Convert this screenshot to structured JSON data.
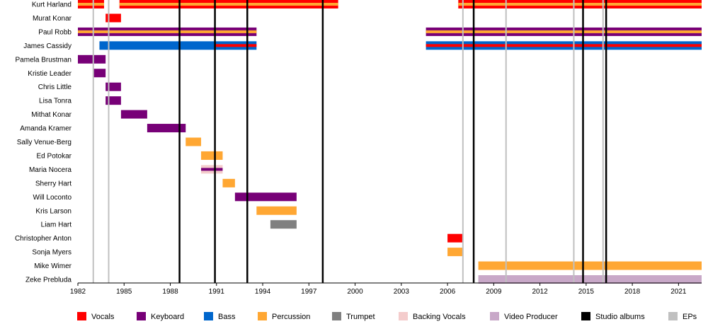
{
  "chart_data": {
    "type": "timeline",
    "xlim": [
      1982,
      2022.5
    ],
    "ticks": [
      "1982",
      "1985",
      "1988",
      "1991",
      "1994",
      "1997",
      "2000",
      "2003",
      "2006",
      "2009",
      "2012",
      "2015",
      "2018",
      "2021"
    ],
    "colors": {
      "Vocals": "#ff0000",
      "Keyboard": "#770077",
      "Bass": "#0066cc",
      "Percussion": "#ffa733",
      "Trumpet": "#808080",
      "Backing Vocals": "#f4cccc",
      "Video Producer": "#c8a8c8",
      "Studio albums": "#000000",
      "EPs": "#c0c0c0"
    },
    "legend": [
      "Vocals",
      "Keyboard",
      "Bass",
      "Percussion",
      "Trumpet",
      "Backing Vocals",
      "Video Producer",
      "Studio albums",
      "EPs"
    ],
    "studio_albums": [
      1988.6,
      1990.9,
      1993.0,
      1997.9,
      2007.7,
      2014.8,
      2016.3
    ],
    "eps": [
      1983.0,
      1984.0,
      2007.0,
      2009.8,
      2014.2,
      2016.1
    ],
    "members": [
      {
        "name": "Kurt Harland",
        "bars": [
          {
            "start": 1982,
            "end": 1983.7,
            "roles": [
              "Vocals",
              "Percussion"
            ]
          },
          {
            "start": 1984.7,
            "end": 1998.9,
            "roles": [
              "Vocals",
              "Percussion"
            ]
          },
          {
            "start": 2006.7,
            "end": 2022.5,
            "roles": [
              "Vocals",
              "Percussion"
            ]
          }
        ]
      },
      {
        "name": "Murat Konar",
        "bars": [
          {
            "start": 1983.8,
            "end": 1984.8,
            "roles": [
              "Vocals"
            ]
          }
        ]
      },
      {
        "name": "Paul Robb",
        "bars": [
          {
            "start": 1982,
            "end": 1993.6,
            "roles": [
              "Keyboard",
              "Percussion"
            ]
          },
          {
            "start": 2004.6,
            "end": 2022.5,
            "roles": [
              "Keyboard",
              "Percussion"
            ]
          }
        ]
      },
      {
        "name": "James Cassidy",
        "bars": [
          {
            "start": 1983.4,
            "end": 1990.9,
            "roles": [
              "Bass"
            ]
          },
          {
            "start": 1990.9,
            "end": 1993.6,
            "roles": [
              "Bass",
              "Vocals"
            ]
          },
          {
            "start": 2004.6,
            "end": 2022.5,
            "roles": [
              "Bass",
              "Vocals"
            ]
          }
        ]
      },
      {
        "name": "Pamela Brustman",
        "bars": [
          {
            "start": 1982,
            "end": 1983.8,
            "roles": [
              "Keyboard"
            ]
          }
        ]
      },
      {
        "name": "Kristie Leader",
        "bars": [
          {
            "start": 1983.0,
            "end": 1983.8,
            "roles": [
              "Keyboard"
            ]
          }
        ]
      },
      {
        "name": "Chris Little",
        "bars": [
          {
            "start": 1983.8,
            "end": 1984.8,
            "roles": [
              "Keyboard"
            ]
          }
        ]
      },
      {
        "name": "Lisa Tonra",
        "bars": [
          {
            "start": 1983.8,
            "end": 1984.8,
            "roles": [
              "Keyboard"
            ]
          }
        ]
      },
      {
        "name": "Mithat Konar",
        "bars": [
          {
            "start": 1984.8,
            "end": 1986.5,
            "roles": [
              "Keyboard"
            ]
          }
        ]
      },
      {
        "name": "Amanda Kramer",
        "bars": [
          {
            "start": 1986.5,
            "end": 1989.0,
            "roles": [
              "Keyboard"
            ]
          }
        ]
      },
      {
        "name": "Sally Venue-Berg",
        "bars": [
          {
            "start": 1989.0,
            "end": 1990.0,
            "roles": [
              "Percussion"
            ]
          }
        ]
      },
      {
        "name": "Ed Potokar",
        "bars": [
          {
            "start": 1990.0,
            "end": 1991.4,
            "roles": [
              "Percussion"
            ]
          }
        ]
      },
      {
        "name": "Maria Nocera",
        "bars": [
          {
            "start": 1990.0,
            "end": 1991.4,
            "roles": [
              "Backing Vocals",
              "Keyboard"
            ]
          }
        ]
      },
      {
        "name": "Sherry Hart",
        "bars": [
          {
            "start": 1991.4,
            "end": 1992.2,
            "roles": [
              "Percussion"
            ]
          }
        ]
      },
      {
        "name": "Will Loconto",
        "bars": [
          {
            "start": 1992.2,
            "end": 1996.2,
            "roles": [
              "Keyboard"
            ]
          }
        ]
      },
      {
        "name": "Kris Larson",
        "bars": [
          {
            "start": 1993.6,
            "end": 1996.2,
            "roles": [
              "Percussion"
            ]
          }
        ]
      },
      {
        "name": "Liam Hart",
        "bars": [
          {
            "start": 1994.5,
            "end": 1996.2,
            "roles": [
              "Trumpet"
            ]
          }
        ]
      },
      {
        "name": "Christopher Anton",
        "bars": [
          {
            "start": 2006.0,
            "end": 2007.0,
            "roles": [
              "Vocals"
            ]
          }
        ]
      },
      {
        "name": "Sonja Myers",
        "bars": [
          {
            "start": 2006.0,
            "end": 2007.0,
            "roles": [
              "Percussion"
            ]
          }
        ]
      },
      {
        "name": "Mike Wimer",
        "bars": [
          {
            "start": 2008.0,
            "end": 2022.5,
            "roles": [
              "Percussion"
            ]
          }
        ]
      },
      {
        "name": "Zeke Prebluda",
        "bars": [
          {
            "start": 2008.0,
            "end": 2022.5,
            "roles": [
              "Video Producer"
            ]
          }
        ]
      }
    ]
  }
}
